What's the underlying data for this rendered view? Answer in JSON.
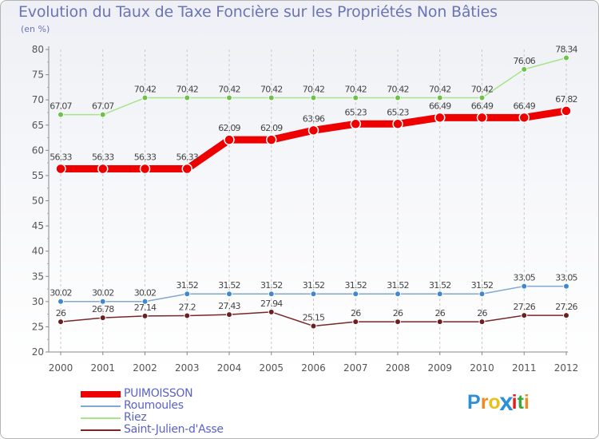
{
  "chart_data": {
    "type": "line",
    "title": "Evolution du Taux de Taxe Foncière sur les Propriétés Non Bâties",
    "ylabel": "(en %)",
    "xlabel": "",
    "ylim": [
      20,
      80
    ],
    "y_ticks": [
      20,
      25,
      30,
      35,
      40,
      45,
      50,
      55,
      60,
      65,
      70,
      75,
      80
    ],
    "x": [
      "2000",
      "2001",
      "2002",
      "2003",
      "2004",
      "2005",
      "2006",
      "2007",
      "2008",
      "2009",
      "2010",
      "2011",
      "2012"
    ],
    "grid": "vertical dashed",
    "legend_position": "bottom-left",
    "series": [
      {
        "name": "PUIMOISSON",
        "color": "#ee0000",
        "marker": "#ee0000",
        "values": [
          56.33,
          56.33,
          56.33,
          56.33,
          62.09,
          62.09,
          63.96,
          65.23,
          65.23,
          66.49,
          66.49,
          66.49,
          67.82
        ],
        "labels": [
          "56.33",
          "56.33",
          "56.33",
          "56.33",
          "62.09",
          "62.09",
          "63.96",
          "65.23",
          "65.23",
          "66.49",
          "66.49",
          "66.49",
          "67.82"
        ]
      },
      {
        "name": "Roumoules",
        "color": "#7fa8d2",
        "marker": "#3f88cf",
        "values": [
          30.02,
          30.02,
          30.02,
          31.52,
          31.52,
          31.52,
          31.52,
          31.52,
          31.52,
          31.52,
          31.52,
          33.05,
          33.05
        ],
        "labels": [
          "30.02",
          "30.02",
          "30.02",
          "31.52",
          "31.52",
          "31.52",
          "31.52",
          "31.52",
          "31.52",
          "31.52",
          "31.52",
          "33.05",
          "33.05"
        ]
      },
      {
        "name": "Riez",
        "color": "#a6e48a",
        "marker": "#6cc24a",
        "values": [
          67.07,
          67.07,
          70.42,
          70.42,
          70.42,
          70.42,
          70.42,
          70.42,
          70.42,
          70.42,
          70.42,
          76.06,
          78.34
        ],
        "labels": [
          "67.07",
          "67.07",
          "70.42",
          "70.42",
          "70.42",
          "70.42",
          "70.42",
          "70.42",
          "70.42",
          "70.42",
          "70.42",
          "76.06",
          "78.34"
        ]
      },
      {
        "name": "Saint-Julien-d'Asse",
        "color": "#7a2626",
        "marker": "#6b1f1f",
        "values": [
          26,
          26.78,
          27.14,
          27.2,
          27.43,
          27.94,
          25.15,
          26,
          26,
          26,
          26,
          27.26,
          27.26
        ],
        "labels": [
          "26",
          "26.78",
          "27.14",
          "27.2",
          "27.43",
          "27.94",
          "25.15",
          "26",
          "26",
          "26",
          "26",
          "27.26",
          "27.26"
        ]
      }
    ]
  },
  "logo": {
    "letters": [
      "P",
      "r",
      "o",
      "x",
      "i",
      "t",
      "i"
    ],
    "colors": [
      "#2d8fd8",
      "#f08a1c",
      "#e8c21a",
      "#2d8fd8",
      "#e02020",
      "#3aa83a",
      "#f08a1c"
    ]
  }
}
